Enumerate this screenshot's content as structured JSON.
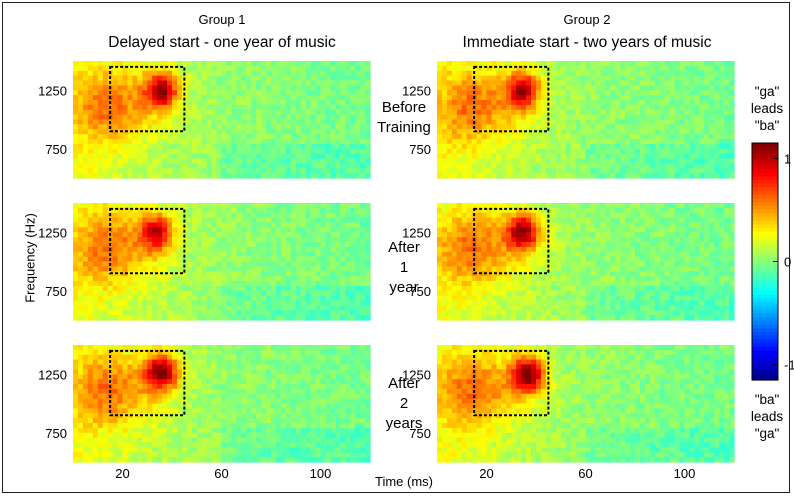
{
  "chart_data": {
    "type": "heatmap",
    "groups": [
      {
        "label": "Group 1",
        "subtitle": "Delayed start - one year of music"
      },
      {
        "label": "Group 2",
        "subtitle": "Immediate start - two years of music"
      }
    ],
    "rows": [
      {
        "label_lines": [
          "Before",
          "Training"
        ]
      },
      {
        "label_lines": [
          "After",
          "1",
          "year"
        ]
      },
      {
        "label_lines": [
          "After",
          "2",
          "years"
        ]
      }
    ],
    "xlabel": "Time (ms)",
    "ylabel": "Frequency (Hz)",
    "x_ticks": [
      20,
      60,
      100
    ],
    "xlim": [
      0,
      120
    ],
    "y_ticks": [
      750,
      1250
    ],
    "ylim": [
      500,
      1500
    ],
    "roi_box": {
      "x": [
        15,
        45
      ],
      "y": [
        900,
        1450
      ]
    },
    "colorbar": {
      "ticks": [
        1,
        0,
        -1
      ],
      "range": [
        -1.15,
        1.15
      ],
      "top_label": [
        "\"ga\"",
        "leads",
        "\"ba\""
      ],
      "bottom_label": [
        "\"ba\"",
        "leads",
        "\"ga\""
      ]
    },
    "panels": [
      {
        "group": 1,
        "row": 1,
        "peak": {
          "x": 36,
          "y": 1250,
          "value": 1.0
        }
      },
      {
        "group": 2,
        "row": 1,
        "peak": {
          "x": 35,
          "y": 1250,
          "value": 0.95
        }
      },
      {
        "group": 1,
        "row": 2,
        "peak": {
          "x": 34,
          "y": 1250,
          "value": 0.85
        }
      },
      {
        "group": 2,
        "row": 2,
        "peak": {
          "x": 35,
          "y": 1250,
          "value": 1.0
        }
      },
      {
        "group": 1,
        "row": 3,
        "peak": {
          "x": 36,
          "y": 1270,
          "value": 1.05
        }
      },
      {
        "group": 2,
        "row": 3,
        "peak": {
          "x": 37,
          "y": 1250,
          "value": 1.1
        }
      }
    ]
  }
}
